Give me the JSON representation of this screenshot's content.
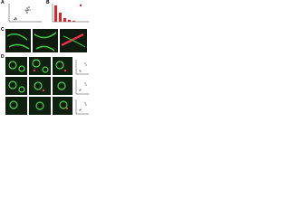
{
  "figure": {
    "panels": [
      {
        "label": "A"
      },
      {
        "label": "B"
      },
      {
        "label": "C"
      },
      {
        "label": "D"
      }
    ]
  }
}
